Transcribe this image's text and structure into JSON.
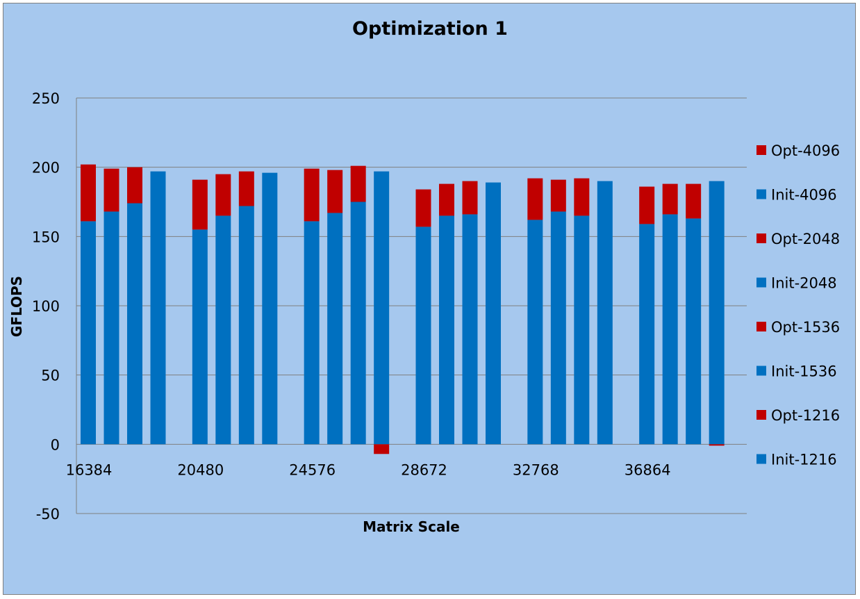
{
  "chart_data": {
    "type": "bar",
    "stacked": true,
    "title": "Optimization 1",
    "xlabel": "Matrix Scale",
    "ylabel": "GFLOPS",
    "ylim": [
      -50,
      250
    ],
    "yticks": [
      -50,
      0,
      50,
      100,
      150,
      200,
      250
    ],
    "grid": true,
    "legend_position": "right",
    "categories": [
      "16384",
      "20480",
      "24576",
      "28672",
      "32768",
      "36864"
    ],
    "colors": {
      "init": "#0070c0",
      "opt": "#c00000",
      "background": "#a6c8ee"
    },
    "series": [
      {
        "name": "Init-1216",
        "kind": "init",
        "values": [
          161,
          155,
          161,
          157,
          162,
          159
        ]
      },
      {
        "name": "Opt-1216",
        "kind": "opt",
        "values": [
          41,
          36,
          38,
          27,
          30,
          27
        ]
      },
      {
        "name": "Init-1536",
        "kind": "init",
        "values": [
          168,
          165,
          167,
          165,
          168,
          166
        ]
      },
      {
        "name": "Opt-1536",
        "kind": "opt",
        "values": [
          31,
          30,
          31,
          23,
          23,
          22
        ]
      },
      {
        "name": "Init-2048",
        "kind": "init",
        "values": [
          174,
          172,
          175,
          166,
          165,
          163
        ]
      },
      {
        "name": "Opt-2048",
        "kind": "opt",
        "values": [
          26,
          25,
          26,
          24,
          27,
          25
        ]
      },
      {
        "name": "Init-4096",
        "kind": "init",
        "values": [
          197,
          196,
          197,
          189,
          190,
          190
        ]
      },
      {
        "name": "Opt-4096",
        "kind": "opt",
        "values": [
          0,
          0,
          -7,
          0,
          0,
          -1
        ]
      }
    ]
  }
}
